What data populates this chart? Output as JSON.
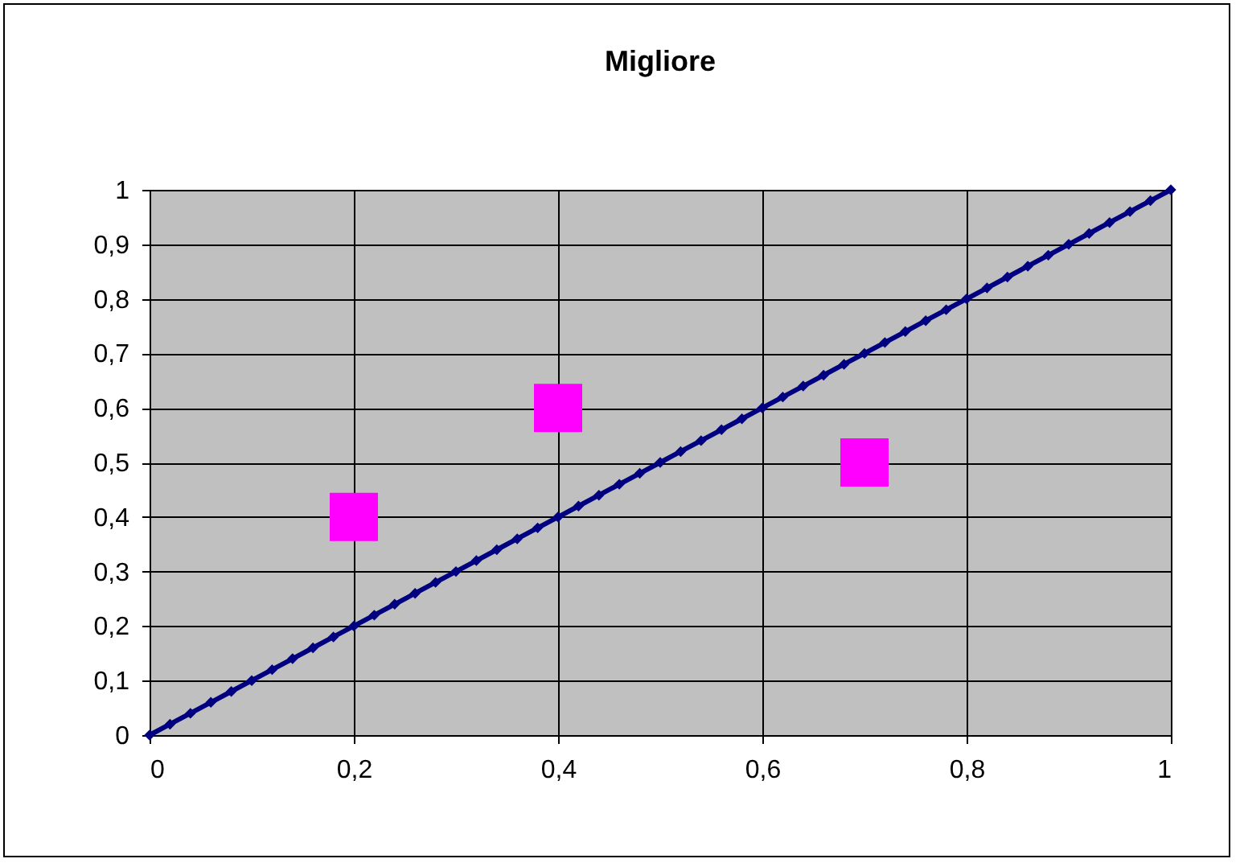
{
  "chart_data": {
    "type": "scatter",
    "title": "Migliore",
    "grid": true,
    "xlim": [
      0,
      1
    ],
    "ylim": [
      0,
      1
    ],
    "xticks": [
      0,
      {
        "value": 0.2,
        "label": "0,2"
      },
      {
        "value": 0.4,
        "label": "0,4"
      },
      {
        "value": 0.6,
        "label": "0,6"
      },
      {
        "value": 0.8,
        "label": "0,8"
      },
      1
    ],
    "yticks": [
      0,
      {
        "value": 0.1,
        "label": "0,1"
      },
      {
        "value": 0.2,
        "label": "0,2"
      },
      {
        "value": 0.3,
        "label": "0,3"
      },
      {
        "value": 0.4,
        "label": "0,4"
      },
      {
        "value": 0.5,
        "label": "0,5"
      },
      {
        "value": 0.6,
        "label": "0,6"
      },
      {
        "value": 0.7,
        "label": "0,7"
      },
      {
        "value": 0.8,
        "label": "0,8"
      },
      {
        "value": 0.9,
        "label": "0,9"
      },
      1
    ],
    "series": [
      {
        "type": "line",
        "color": "#000080",
        "marker": "diamond",
        "line_style": "solid",
        "x": [
          0,
          0.02,
          0.04,
          0.06,
          0.08,
          0.1,
          0.12,
          0.14,
          0.16,
          0.18,
          0.2,
          0.22,
          0.24,
          0.26,
          0.28,
          0.3,
          0.32,
          0.34,
          0.36,
          0.38,
          0.4,
          0.42,
          0.44,
          0.46,
          0.48,
          0.5,
          0.52,
          0.54,
          0.56,
          0.58,
          0.6,
          0.62,
          0.64,
          0.66,
          0.68,
          0.7,
          0.72,
          0.74,
          0.76,
          0.78,
          0.8,
          0.82,
          0.84,
          0.86,
          0.88,
          0.9,
          0.92,
          0.94,
          0.96,
          0.98,
          1
        ],
        "values": [
          0,
          0.02,
          0.04,
          0.06,
          0.08,
          0.1,
          0.12,
          0.14,
          0.16,
          0.18,
          0.2,
          0.22,
          0.24,
          0.26,
          0.28,
          0.3,
          0.32,
          0.34,
          0.36,
          0.38,
          0.4,
          0.42,
          0.44,
          0.46,
          0.48,
          0.5,
          0.52,
          0.54,
          0.56,
          0.58,
          0.6,
          0.62,
          0.64,
          0.66,
          0.68,
          0.7,
          0.72,
          0.74,
          0.76,
          0.78,
          0.8,
          0.82,
          0.84,
          0.86,
          0.88,
          0.9,
          0.92,
          0.94,
          0.96,
          0.98,
          1
        ]
      },
      {
        "color": "#ff00ff",
        "marker": "square",
        "x": [
          0.2,
          0.4,
          0.7
        ],
        "values": [
          0.4,
          0.6,
          0.5
        ]
      }
    ]
  }
}
